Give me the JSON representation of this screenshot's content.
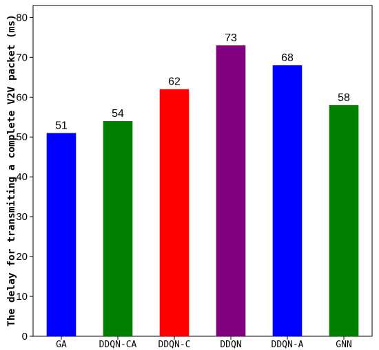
{
  "chart_data": {
    "type": "bar",
    "title": "",
    "xlabel": "",
    "ylabel": "The delay for transmiting a complete V2V packet (ms)",
    "categories": [
      "GA",
      "DDQN-CA",
      "DDQN-C",
      "DDQN",
      "DDQN-A",
      "GNN"
    ],
    "values": [
      51,
      54,
      62,
      73,
      68,
      58
    ],
    "data_labels": [
      "51",
      "54",
      "62",
      "73",
      "68",
      "58"
    ],
    "colors": [
      "#0000ff",
      "#008000",
      "#ff0000",
      "#800080",
      "#0000ff",
      "#008000"
    ],
    "ylim": [
      0,
      83
    ],
    "yticks": [
      0,
      10,
      20,
      30,
      40,
      50,
      60,
      70,
      80
    ],
    "grid": false,
    "legend": "none"
  }
}
